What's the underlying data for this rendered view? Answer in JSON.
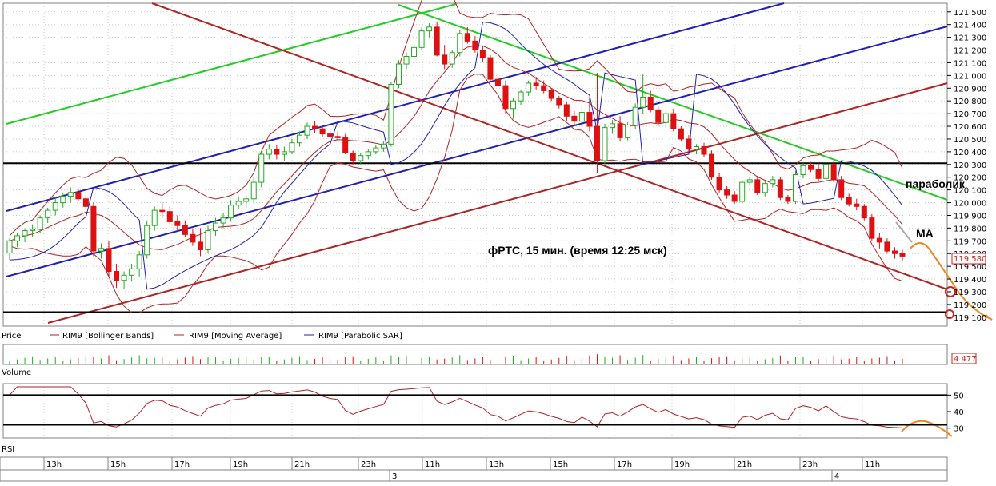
{
  "chart_data": {
    "type": "candlestick",
    "instrument": "RIM9",
    "annotations": {
      "main": "фРТС,  15 мин.  (время 12:25 мск)",
      "parabolic": "параболик",
      "ma": "MA"
    },
    "price_axis": {
      "ticks": [
        "121 500",
        "121 400",
        "121 300",
        "121 200",
        "121 100",
        "121 000",
        "120 900",
        "120 800",
        "120 700",
        "120 600",
        "120 500",
        "120 400",
        "120 300",
        "120 200",
        "120 100",
        "120 000",
        "119 900",
        "119 800",
        "119 700",
        "119 600",
        "119 500",
        "119 400",
        "119 300",
        "119 200",
        "119 100"
      ],
      "range": [
        119080,
        121530
      ],
      "last_price": "119 580"
    },
    "volume_axis": {
      "last": "4 477"
    },
    "rsi_axis": {
      "ticks": [
        "50",
        "40",
        "30"
      ],
      "range": [
        25,
        55
      ],
      "levels": [
        50,
        32
      ]
    },
    "time_labels": [
      "13h",
      "15h",
      "17h",
      "19h",
      "21h",
      "23h",
      "11h",
      "13h",
      "15h",
      "17h",
      "19h",
      "21h",
      "23h",
      "11h"
    ],
    "date_labels": [
      "3",
      "4"
    ],
    "panes": {
      "price": "Price",
      "volume": "Volume",
      "rsi": "RSI"
    },
    "legend": [
      {
        "name": "RIM9 [Bollinger Bands]",
        "color": "#b22222"
      },
      {
        "name": "RIM9 [Moving Average]",
        "color": "#b22222"
      },
      {
        "name": "RIM9 [Parabolic SAR]",
        "color": "#1f1fb4"
      }
    ],
    "horizontal_levels": [
      120310,
      119140
    ],
    "candles": [
      [
        119605,
        119720,
        119550,
        119700
      ],
      [
        119700,
        119760,
        119650,
        119740
      ],
      [
        119740,
        119800,
        119690,
        119780
      ],
      [
        119780,
        119830,
        119730,
        119790
      ],
      [
        119790,
        119900,
        119760,
        119880
      ],
      [
        119880,
        119960,
        119840,
        119940
      ],
      [
        119940,
        120040,
        119900,
        120000
      ],
      [
        120000,
        120080,
        119960,
        120050
      ],
      [
        120050,
        120120,
        120000,
        120080
      ],
      [
        120080,
        120110,
        120010,
        120030
      ],
      [
        120030,
        120060,
        119940,
        119970
      ],
      [
        119970,
        120000,
        119580,
        119620
      ],
      [
        119620,
        119680,
        119560,
        119640
      ],
      [
        119640,
        119700,
        119420,
        119460
      ],
      [
        119460,
        119520,
        119330,
        119390
      ],
      [
        119390,
        119460,
        119320,
        119430
      ],
      [
        119430,
        119520,
        119380,
        119480
      ],
      [
        119480,
        119620,
        119420,
        119590
      ],
      [
        119590,
        119860,
        119560,
        119820
      ],
      [
        119820,
        119970,
        119780,
        119940
      ],
      [
        119940,
        120000,
        119880,
        119930
      ],
      [
        119930,
        119970,
        119830,
        119850
      ],
      [
        119850,
        119900,
        119780,
        119820
      ],
      [
        119820,
        119860,
        119730,
        119750
      ],
      [
        119750,
        119790,
        119660,
        119690
      ],
      [
        119690,
        119800,
        119580,
        119630
      ],
      [
        119630,
        119820,
        119600,
        119780
      ],
      [
        119780,
        119880,
        119740,
        119840
      ],
      [
        119840,
        119920,
        119800,
        119880
      ],
      [
        119880,
        120020,
        119850,
        119980
      ],
      [
        119980,
        120050,
        119950,
        120010
      ],
      [
        120010,
        120060,
        119960,
        120030
      ],
      [
        120030,
        120200,
        120000,
        120160
      ],
      [
        120160,
        120400,
        120120,
        120380
      ],
      [
        120380,
        120460,
        120340,
        120420
      ],
      [
        120420,
        120450,
        120340,
        120380
      ],
      [
        120380,
        120440,
        120330,
        120400
      ],
      [
        120400,
        120500,
        120380,
        120470
      ],
      [
        120470,
        120560,
        120440,
        120530
      ],
      [
        120530,
        120630,
        120500,
        120600
      ],
      [
        120600,
        120640,
        120550,
        120580
      ],
      [
        120580,
        120600,
        120520,
        120540
      ],
      [
        120540,
        120570,
        120500,
        120520
      ],
      [
        120520,
        120560,
        120480,
        120510
      ],
      [
        120510,
        120540,
        120380,
        120390
      ],
      [
        120390,
        120410,
        120300,
        120330
      ],
      [
        120330,
        120390,
        120300,
        120370
      ],
      [
        120370,
        120420,
        120340,
        120400
      ],
      [
        120400,
        120450,
        120380,
        120430
      ],
      [
        120430,
        120480,
        120400,
        120460
      ],
      [
        120460,
        120950,
        120440,
        120930
      ],
      [
        120930,
        121120,
        120900,
        121090
      ],
      [
        121090,
        121180,
        121050,
        121150
      ],
      [
        121150,
        121250,
        121100,
        121220
      ],
      [
        121220,
        121380,
        121200,
        121350
      ],
      [
        121350,
        121410,
        121300,
        121380
      ],
      [
        121380,
        121420,
        121150,
        121160
      ],
      [
        121160,
        121240,
        121050,
        121090
      ],
      [
        121090,
        121200,
        121060,
        121180
      ],
      [
        121180,
        121360,
        121150,
        121330
      ],
      [
        121330,
        121380,
        121250,
        121270
      ],
      [
        121270,
        121310,
        121180,
        121200
      ],
      [
        121200,
        121230,
        121110,
        121140
      ],
      [
        121140,
        121160,
        120950,
        120970
      ],
      [
        120970,
        121010,
        120880,
        120920
      ],
      [
        120920,
        120960,
        120700,
        120740
      ],
      [
        120740,
        120820,
        120660,
        120800
      ],
      [
        120800,
        120890,
        120770,
        120870
      ],
      [
        120870,
        120960,
        120840,
        120940
      ],
      [
        120940,
        120990,
        120890,
        120920
      ],
      [
        120920,
        120960,
        120860,
        120880
      ],
      [
        120880,
        120900,
        120800,
        120820
      ],
      [
        120820,
        120840,
        120740,
        120770
      ],
      [
        120770,
        120790,
        120640,
        120680
      ],
      [
        120680,
        120720,
        120600,
        120640
      ],
      [
        120640,
        120760,
        120600,
        120710
      ],
      [
        120710,
        120830,
        120560,
        120600
      ],
      [
        120600,
        121020,
        120230,
        120330
      ],
      [
        120330,
        120620,
        120300,
        120590
      ],
      [
        120590,
        120650,
        120540,
        120620
      ],
      [
        120620,
        120680,
        120480,
        120510
      ],
      [
        120510,
        120630,
        120490,
        120610
      ],
      [
        120610,
        120780,
        120580,
        120750
      ],
      [
        120750,
        121010,
        120700,
        120830
      ],
      [
        120830,
        120880,
        120710,
        120730
      ],
      [
        120730,
        120760,
        120600,
        120630
      ],
      [
        120630,
        120720,
        120590,
        120700
      ],
      [
        120700,
        120740,
        120560,
        120580
      ],
      [
        120580,
        120600,
        120480,
        120500
      ],
      [
        120500,
        120530,
        120400,
        120420
      ],
      [
        120420,
        120460,
        120380,
        120440
      ],
      [
        120440,
        120470,
        120360,
        120380
      ],
      [
        120380,
        120410,
        120180,
        120200
      ],
      [
        120200,
        120230,
        120080,
        120100
      ],
      [
        120100,
        120130,
        120030,
        120060
      ],
      [
        120060,
        120090,
        119990,
        120010
      ],
      [
        120010,
        120180,
        119990,
        120160
      ],
      [
        120160,
        120200,
        120130,
        120180
      ],
      [
        120180,
        120210,
        120060,
        120080
      ],
      [
        120080,
        120170,
        120050,
        120150
      ],
      [
        120150,
        120210,
        120120,
        120180
      ],
      [
        120180,
        120200,
        120020,
        120040
      ],
      [
        120040,
        120060,
        119990,
        120010
      ],
      [
        120010,
        120250,
        119990,
        120220
      ],
      [
        120220,
        120310,
        120190,
        120290
      ],
      [
        120290,
        120320,
        120240,
        120260
      ],
      [
        120260,
        120310,
        120170,
        120190
      ],
      [
        120190,
        120320,
        120170,
        120300
      ],
      [
        120300,
        120330,
        120160,
        120180
      ],
      [
        120180,
        120210,
        120020,
        120040
      ],
      [
        120040,
        120070,
        119970,
        119990
      ],
      [
        119990,
        120030,
        119940,
        119970
      ],
      [
        119970,
        119990,
        119860,
        119880
      ],
      [
        119880,
        119910,
        119700,
        119720
      ],
      [
        119720,
        119760,
        119640,
        119690
      ],
      [
        119690,
        119720,
        119600,
        119620
      ],
      [
        119620,
        119650,
        119560,
        119600
      ],
      [
        119600,
        119630,
        119540,
        119580
      ]
    ]
  }
}
